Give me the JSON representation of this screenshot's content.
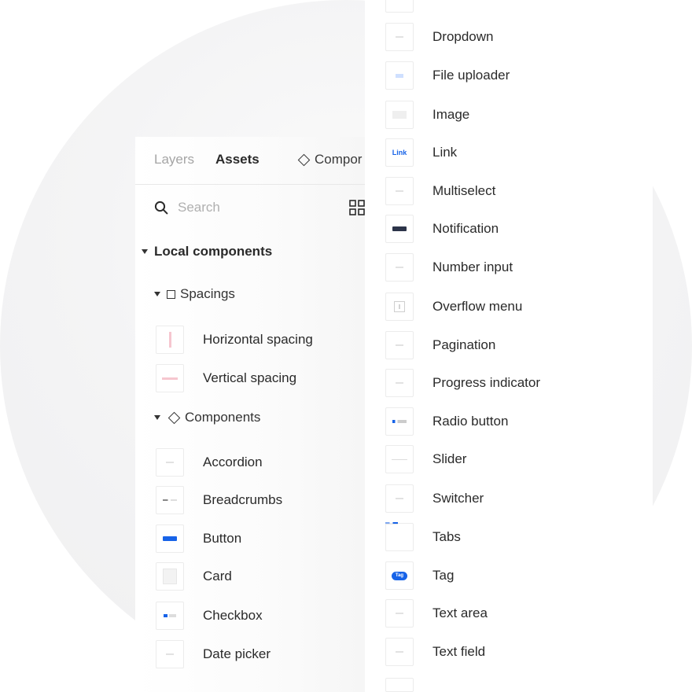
{
  "tabs": {
    "layers": "Layers",
    "assets": "Assets",
    "components": "Compor"
  },
  "search": {
    "placeholder": "Search"
  },
  "sections": {
    "local_components": "Local components",
    "spacings": "Spacings",
    "components": "Components"
  },
  "spacings_items": [
    {
      "label": "Horizontal spacing",
      "icon": "horizontal-spacing-thumbnail"
    },
    {
      "label": "Vertical spacing",
      "icon": "vertical-spacing-thumbnail"
    }
  ],
  "component_items_left": [
    {
      "label": "Accordion",
      "icon": "accordion-thumbnail"
    },
    {
      "label": "Breadcrumbs",
      "icon": "breadcrumbs-thumbnail"
    },
    {
      "label": "Button",
      "icon": "button-thumbnail"
    },
    {
      "label": "Card",
      "icon": "card-thumbnail"
    },
    {
      "label": "Checkbox",
      "icon": "checkbox-thumbnail"
    },
    {
      "label": "Date picker",
      "icon": "date-picker-thumbnail"
    }
  ],
  "component_items_right": [
    {
      "label": "Dropdown",
      "icon": "dropdown-thumbnail"
    },
    {
      "label": "File uploader",
      "icon": "file-uploader-thumbnail"
    },
    {
      "label": "Image",
      "icon": "image-thumbnail"
    },
    {
      "label": "Link",
      "icon": "link-thumbnail",
      "thumb_text": "Link"
    },
    {
      "label": "Multiselect",
      "icon": "multiselect-thumbnail"
    },
    {
      "label": "Notification",
      "icon": "notification-thumbnail"
    },
    {
      "label": "Number input",
      "icon": "number-input-thumbnail"
    },
    {
      "label": "Overflow menu",
      "icon": "overflow-menu-thumbnail"
    },
    {
      "label": "Pagination",
      "icon": "pagination-thumbnail"
    },
    {
      "label": "Progress indicator",
      "icon": "progress-indicator-thumbnail"
    },
    {
      "label": "Radio button",
      "icon": "radio-button-thumbnail"
    },
    {
      "label": "Slider",
      "icon": "slider-thumbnail"
    },
    {
      "label": "Switcher",
      "icon": "switcher-thumbnail"
    },
    {
      "label": "Tabs",
      "icon": "tabs-thumbnail"
    },
    {
      "label": "Tag",
      "icon": "tag-thumbnail",
      "thumb_text": "Tag"
    },
    {
      "label": "Text area",
      "icon": "text-area-thumbnail"
    },
    {
      "label": "Text field",
      "icon": "text-field-thumbnail"
    }
  ],
  "colors": {
    "accent": "#1763e8",
    "notification": "#2c3449",
    "spacing_marker": "#f6c6cf",
    "inactive_tab": "#a5a5a5"
  }
}
